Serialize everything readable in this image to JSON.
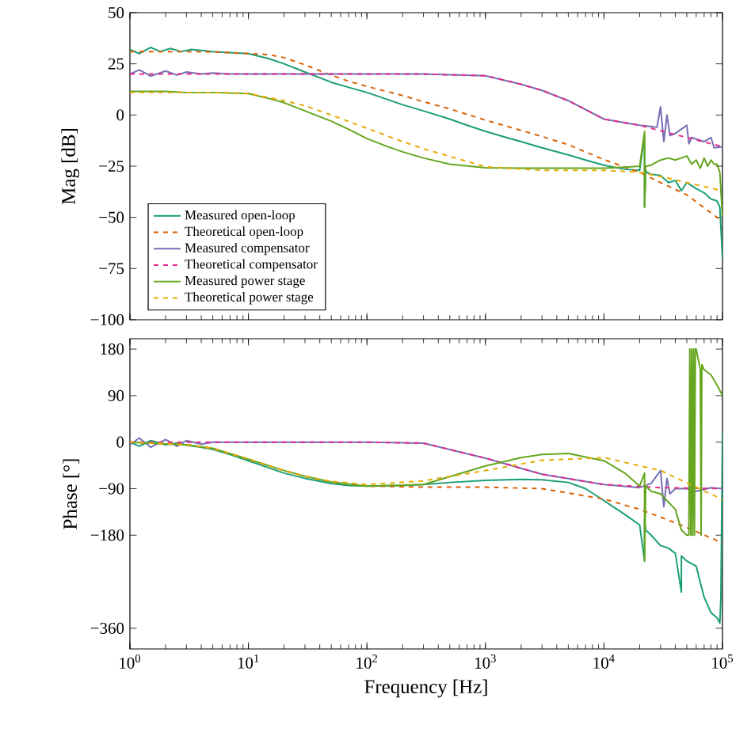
{
  "chart_data": [
    {
      "type": "line",
      "ylabel": "Mag [dB]",
      "log": "x",
      "legend": "bottom left",
      "tick_labels": "y",
      "xlim": [
        1,
        100000
      ],
      "ylim": [
        -100,
        50
      ],
      "xticks": [
        {
          "value": 1,
          "label": null
        },
        {
          "value": 10,
          "label": null
        },
        {
          "value": 100,
          "label": null
        },
        {
          "value": 1000,
          "label": null
        },
        {
          "value": 10000,
          "label": null
        },
        {
          "value": 100000,
          "label": null
        }
      ],
      "yticks": [
        {
          "value": -100,
          "label": "−100"
        },
        {
          "value": -75,
          "label": "−75"
        },
        {
          "value": -50,
          "label": "−50"
        },
        {
          "value": -25,
          "label": "−25"
        },
        0,
        25,
        50
      ],
      "series": [
        {
          "name": "Measured open-loop",
          "color": "#1b9e77",
          "line_style": "solid",
          "x": [
            1,
            1.2,
            1.5,
            1.8,
            2.2,
            2.7,
            3.3,
            4,
            5,
            7,
            10,
            15,
            20,
            30,
            50,
            70,
            100,
            150,
            200,
            300,
            500,
            700,
            1000,
            1500,
            2000,
            3000,
            5000,
            7000,
            10000,
            15000,
            20000,
            22000,
            22000,
            22500,
            23000,
            25000,
            30000,
            35000,
            40000,
            45000,
            50000,
            60000,
            70000,
            80000,
            90000,
            95000,
            100000
          ],
          "values": [
            32,
            30,
            33,
            31,
            32.5,
            31,
            32,
            31.5,
            31,
            30.5,
            30,
            27.5,
            25,
            21,
            16,
            13.5,
            11,
            7.5,
            5,
            2,
            -2,
            -5,
            -8,
            -11,
            -13,
            -16,
            -19.5,
            -22,
            -24.5,
            -26.5,
            -27,
            -10,
            -45,
            -27,
            -28,
            -29,
            -29.5,
            -33,
            -32,
            -37,
            -33,
            -36,
            -38,
            -41,
            -42,
            -45,
            -70
          ]
        },
        {
          "name": "Theoretical open-loop",
          "color": "#d95f02",
          "line_style": "dashed",
          "x": [
            1,
            3,
            5,
            10,
            15,
            20,
            30,
            50,
            70,
            100,
            200,
            300,
            500,
            1000,
            2000,
            3000,
            5000,
            10000,
            20000,
            30000,
            50000,
            100000
          ],
          "values": [
            31,
            31,
            30.8,
            30,
            29.5,
            28,
            24.5,
            19.5,
            16.5,
            14,
            9.5,
            6.5,
            3,
            -2.5,
            -7.5,
            -10.5,
            -14.5,
            -21.8,
            -28,
            -33,
            -39,
            -52
          ]
        },
        {
          "name": "Measured compensator",
          "color": "#7570b3",
          "line_style": "solid",
          "x": [
            1,
            1.2,
            1.5,
            2,
            2.5,
            3,
            4,
            5,
            7,
            10,
            30,
            100,
            300,
            1000,
            2000,
            3000,
            5000,
            10000,
            20000,
            28000,
            30000,
            32000,
            34000,
            36000,
            40000,
            50000,
            52000,
            55000,
            70000,
            80000,
            85000,
            100000
          ],
          "values": [
            20,
            22,
            19,
            21.5,
            19.5,
            21,
            20,
            20.5,
            20,
            20,
            20,
            20,
            20,
            19.2,
            15,
            12,
            7,
            -2,
            -5,
            -6,
            4,
            -13,
            0,
            -10,
            -9,
            -5,
            -14,
            -11,
            -13,
            -11,
            -16,
            -15.5
          ]
        },
        {
          "name": "Theoretical compensator",
          "color": "#e7298a",
          "line_style": "dashed",
          "x": [
            1,
            10,
            100,
            300,
            1000,
            2000,
            3000,
            5000,
            10000,
            20000,
            30000,
            50000,
            100000
          ],
          "values": [
            20,
            20,
            20,
            20,
            19.2,
            15,
            12,
            7,
            -2,
            -5,
            -7.7,
            -11,
            -15.5
          ]
        },
        {
          "name": "Measured power stage",
          "color": "#66a61e",
          "line_style": "solid",
          "x": [
            1,
            2,
            3,
            5,
            10,
            15,
            20,
            30,
            50,
            70,
            100,
            150,
            200,
            300,
            500,
            1000,
            2000,
            5000,
            10000,
            15000,
            20000,
            22000,
            22000,
            22500,
            25000,
            30000,
            35000,
            40000,
            45000,
            50000,
            55000,
            60000,
            65000,
            70000,
            75000,
            80000,
            85000,
            90000,
            95000,
            100000
          ],
          "values": [
            11.5,
            11.5,
            11,
            11,
            10.5,
            8,
            6,
            2,
            -3,
            -7,
            -11.5,
            -15.5,
            -18,
            -21,
            -24,
            -25.8,
            -26,
            -26,
            -26,
            -25.5,
            -25,
            -8,
            -45,
            -25,
            -24.5,
            -22,
            -21,
            -22,
            -21,
            -20,
            -24,
            -22,
            -26,
            -21,
            -25,
            -22,
            -24,
            -24,
            -28,
            -50
          ]
        },
        {
          "name": "Theoretical power stage",
          "color": "#e6ab02",
          "line_style": "dashed",
          "x": [
            1,
            5,
            10,
            20,
            30,
            50,
            100,
            200,
            300,
            1000,
            3000,
            10000,
            20000,
            30000,
            50000,
            100000
          ],
          "values": [
            11,
            11,
            10.5,
            7,
            4.5,
            0,
            -6.5,
            -13,
            -16.5,
            -25.3,
            -27,
            -27,
            -28,
            -30,
            -33,
            -37
          ]
        }
      ]
    },
    {
      "type": "line",
      "xlabel": "Frequency [Hz]",
      "ylabel": "Phase [°]",
      "log": "x",
      "xlim": [
        1,
        100000
      ],
      "ylim": [
        -400,
        200
      ],
      "xticks": [
        {
          "value": 1,
          "label": "10$^{0}$"
        },
        {
          "value": 10,
          "label": "10$^{1}$"
        },
        {
          "value": 100,
          "label": "10$^{2}$"
        },
        {
          "value": 1000,
          "label": "10$^{3}$"
        },
        {
          "value": 10000,
          "label": "10$^{4}$"
        },
        {
          "value": 100000,
          "label": "10$^{5}$"
        }
      ],
      "yticks": [
        {
          "value": -360,
          "label": "−360"
        },
        {
          "value": -180,
          "label": "−180"
        },
        {
          "value": -90,
          "label": "−90"
        },
        0,
        90,
        180
      ],
      "series": [
        {
          "color": "#1b9e77",
          "line_style": "solid",
          "x": [
            1,
            1.2,
            1.5,
            2,
            2.5,
            3,
            4,
            5,
            7,
            10,
            15,
            20,
            30,
            50,
            70,
            100,
            200,
            300,
            500,
            1000,
            2000,
            3000,
            5000,
            7000,
            10000,
            15000,
            20000,
            22000,
            22000,
            22500,
            25000,
            30000,
            35000,
            40000,
            45000,
            45000,
            50000,
            60000,
            70000,
            80000,
            90000,
            95000,
            97000,
            100000
          ],
          "values": [
            0,
            -8,
            3,
            -5,
            -2,
            -6,
            -10,
            -14,
            -24,
            -36,
            -50,
            -60,
            -70,
            -80,
            -84,
            -85,
            -84,
            -82,
            -78,
            -74,
            -72,
            -73,
            -78,
            -90,
            -113,
            -140,
            -160,
            -230,
            -150,
            -170,
            -180,
            -200,
            -205,
            -215,
            -290,
            -220,
            -230,
            -240,
            -300,
            -330,
            -340,
            -350,
            -300,
            20
          ]
        },
        {
          "color": "#d95f02",
          "line_style": "dashed",
          "x": [
            1,
            3,
            5,
            10,
            20,
            30,
            50,
            100,
            300,
            1000,
            3000,
            10000,
            20000,
            30000,
            50000,
            100000
          ],
          "values": [
            0,
            -5,
            -12,
            -33,
            -55,
            -66,
            -77,
            -85,
            -87,
            -87,
            -90,
            -110,
            -130,
            -145,
            -165,
            -195
          ]
        },
        {
          "color": "#7570b3",
          "line_style": "solid",
          "x": [
            1,
            1.2,
            1.5,
            2,
            2.5,
            3,
            4,
            5,
            10,
            100,
            300,
            1000,
            3000,
            10000,
            20000,
            25000,
            30000,
            32000,
            34000,
            36000,
            40000,
            50000,
            60000,
            80000,
            100000
          ],
          "values": [
            -5,
            8,
            -10,
            5,
            -8,
            3,
            -4,
            0,
            0,
            0,
            -2,
            -31,
            -62,
            -82,
            -88,
            -80,
            -55,
            -125,
            -70,
            -100,
            -90,
            -90,
            -95,
            -88,
            -90
          ]
        },
        {
          "color": "#e7298a",
          "line_style": "dashed",
          "x": [
            1,
            10,
            100,
            300,
            1000,
            3000,
            10000,
            30000,
            100000
          ],
          "values": [
            0,
            0,
            0,
            -2,
            -31,
            -62,
            -82,
            -88,
            -90
          ]
        },
        {
          "color": "#66a61e",
          "line_style": "solid",
          "x": [
            1,
            3,
            5,
            10,
            20,
            30,
            50,
            100,
            300,
            1000,
            2000,
            3000,
            5000,
            10000,
            15000,
            20000,
            22000,
            22000,
            22500,
            25000,
            30000,
            40000,
            45000,
            50000,
            52000,
            53000,
            54000,
            55000,
            56000,
            57000,
            58000,
            59000,
            60000,
            65000,
            66000,
            67000,
            70000,
            80000,
            90000,
            95000,
            100000
          ],
          "values": [
            0,
            -5,
            -12,
            -33,
            -55,
            -66,
            -77,
            -85,
            -82,
            -46,
            -30,
            -24,
            -22,
            -36,
            -60,
            -85,
            -60,
            -230,
            -85,
            -95,
            -100,
            -130,
            -170,
            -180,
            -180,
            180,
            -180,
            180,
            -180,
            180,
            -180,
            180,
            180,
            140,
            -180,
            150,
            140,
            130,
            110,
            100,
            90
          ]
        },
        {
          "color": "#e6ab02",
          "line_style": "dashed",
          "x": [
            1,
            3,
            5,
            10,
            20,
            30,
            50,
            100,
            300,
            1000,
            3000,
            10000,
            30000,
            100000
          ],
          "values": [
            0,
            -5,
            -12,
            -33,
            -55,
            -66,
            -76,
            -82,
            -75,
            -55,
            -35,
            -30,
            -55,
            -111
          ]
        }
      ]
    }
  ]
}
